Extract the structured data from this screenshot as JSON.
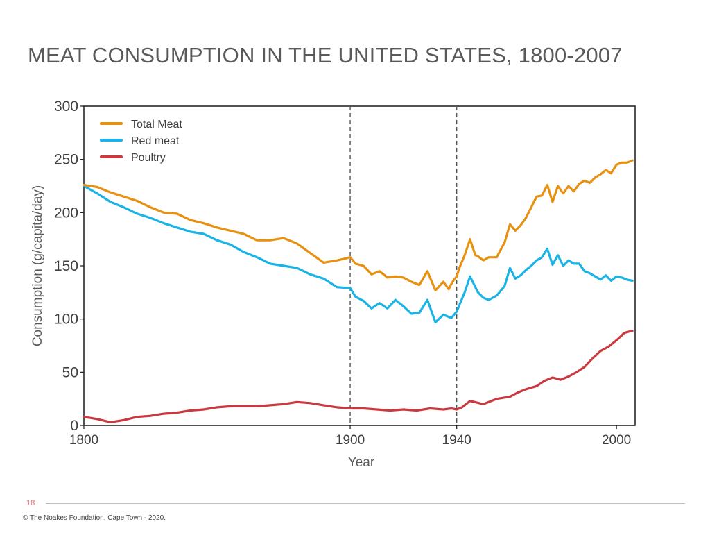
{
  "slide": {
    "title": "MEAT CONSUMPTION IN THE UNITED STATES, 1800-2007",
    "page_number": "18",
    "footer": "© The Noakes Foundation. Cape Town - 2020."
  },
  "chart_data": {
    "type": "line",
    "title": "",
    "xlabel": "Year",
    "ylabel": "Consumption (g/capita/day)",
    "xlim": [
      1800,
      2007
    ],
    "ylim": [
      0,
      300
    ],
    "xticks": [
      1800,
      1900,
      1940,
      2000
    ],
    "yticks": [
      0,
      50,
      100,
      150,
      200,
      250,
      300
    ],
    "vlines": [
      1900,
      1940
    ],
    "grid": false,
    "legend_position": "top-left",
    "series": [
      {
        "name": "Total Meat",
        "color": "#e8900f",
        "x": [
          1800,
          1805,
          1810,
          1815,
          1820,
          1825,
          1830,
          1835,
          1840,
          1845,
          1850,
          1855,
          1860,
          1865,
          1870,
          1875,
          1880,
          1885,
          1890,
          1895,
          1900,
          1902,
          1905,
          1908,
          1911,
          1914,
          1917,
          1920,
          1923,
          1926,
          1929,
          1932,
          1935,
          1937,
          1938,
          1939,
          1940,
          1941,
          1943,
          1945,
          1947,
          1948,
          1950,
          1952,
          1955,
          1958,
          1960,
          1962,
          1964,
          1966,
          1968,
          1970,
          1972,
          1974,
          1976,
          1978,
          1980,
          1982,
          1984,
          1986,
          1988,
          1990,
          1992,
          1994,
          1996,
          1998,
          2000,
          2002,
          2004,
          2006
        ],
        "values": [
          226,
          224,
          219,
          215,
          211,
          205,
          200,
          199,
          193,
          190,
          186,
          183,
          180,
          174,
          174,
          176,
          171,
          162,
          153,
          155,
          158,
          152,
          150,
          142,
          145,
          139,
          140,
          139,
          135,
          132,
          145,
          127,
          135,
          128,
          133,
          137,
          140,
          148,
          160,
          175,
          160,
          159,
          155,
          158,
          158,
          172,
          189,
          183,
          188,
          195,
          205,
          215,
          216,
          226,
          210,
          225,
          218,
          225,
          220,
          227,
          230,
          228,
          233,
          236,
          240,
          237,
          245,
          247,
          247,
          249
        ]
      },
      {
        "name": "Red meat",
        "color": "#19b3e6",
        "x": [
          1800,
          1805,
          1810,
          1815,
          1820,
          1825,
          1830,
          1835,
          1840,
          1845,
          1850,
          1855,
          1860,
          1865,
          1870,
          1875,
          1880,
          1885,
          1890,
          1895,
          1900,
          1902,
          1905,
          1908,
          1911,
          1914,
          1917,
          1920,
          1923,
          1926,
          1929,
          1932,
          1935,
          1937,
          1938,
          1939,
          1940,
          1941,
          1943,
          1945,
          1947,
          1948,
          1950,
          1952,
          1955,
          1958,
          1960,
          1962,
          1964,
          1966,
          1968,
          1970,
          1972,
          1974,
          1976,
          1978,
          1980,
          1982,
          1984,
          1986,
          1988,
          1990,
          1992,
          1994,
          1996,
          1998,
          2000,
          2002,
          2004,
          2006
        ],
        "values": [
          225,
          218,
          210,
          205,
          199,
          195,
          190,
          186,
          182,
          180,
          174,
          170,
          163,
          158,
          152,
          150,
          148,
          142,
          138,
          130,
          129,
          121,
          117,
          110,
          115,
          110,
          118,
          112,
          105,
          106,
          118,
          97,
          104,
          102,
          101,
          104,
          107,
          113,
          125,
          140,
          130,
          125,
          120,
          118,
          122,
          131,
          148,
          138,
          141,
          146,
          150,
          155,
          158,
          166,
          151,
          160,
          150,
          155,
          152,
          152,
          145,
          143,
          140,
          137,
          141,
          136,
          140,
          139,
          137,
          136
        ]
      },
      {
        "name": "Poultry",
        "color": "#c93a40",
        "x": [
          1800,
          1805,
          1810,
          1815,
          1820,
          1825,
          1830,
          1835,
          1840,
          1845,
          1850,
          1855,
          1860,
          1865,
          1870,
          1875,
          1880,
          1885,
          1890,
          1895,
          1900,
          1905,
          1910,
          1915,
          1920,
          1925,
          1930,
          1935,
          1938,
          1940,
          1942,
          1945,
          1950,
          1955,
          1960,
          1963,
          1966,
          1970,
          1973,
          1976,
          1979,
          1982,
          1985,
          1988,
          1991,
          1994,
          1997,
          2000,
          2003,
          2006
        ],
        "values": [
          8,
          6,
          3,
          5,
          8,
          9,
          11,
          12,
          14,
          15,
          17,
          18,
          18,
          18,
          19,
          20,
          22,
          21,
          19,
          17,
          16,
          16,
          15,
          14,
          15,
          14,
          16,
          15,
          16,
          15,
          17,
          23,
          20,
          25,
          27,
          31,
          34,
          37,
          42,
          45,
          43,
          46,
          50,
          55,
          63,
          70,
          74,
          80,
          87,
          89
        ]
      }
    ]
  }
}
